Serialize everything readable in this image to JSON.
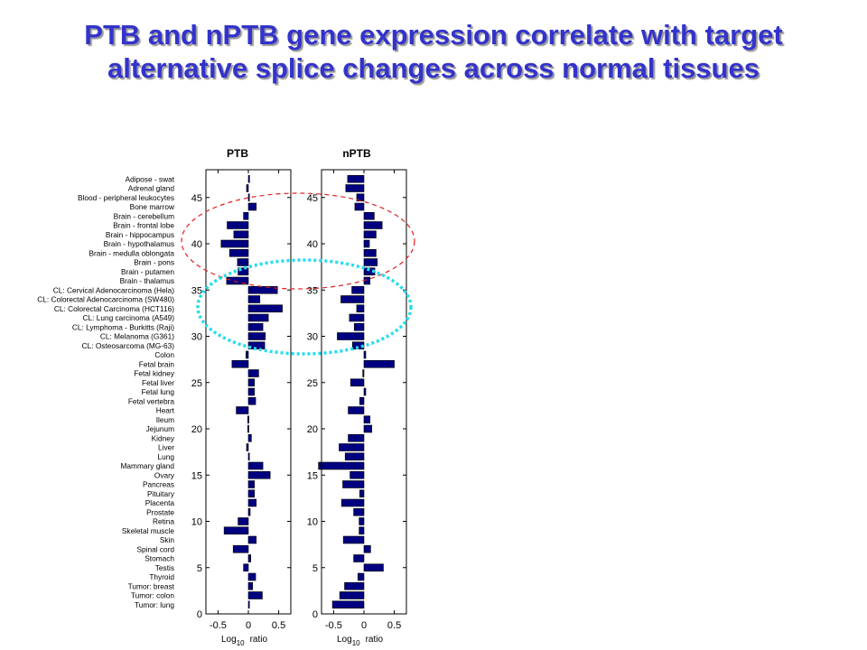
{
  "title_lines": [
    "PTB and nPTB gene expression correlate with target",
    "alternative splice changes across normal tissues"
  ],
  "colors": {
    "title": "#3333cc",
    "bar_fill": "#000080",
    "red_ellipse": "#dd2222",
    "cyan_ellipse": "#22ddee"
  },
  "chart_data": [
    {
      "type": "bar",
      "orientation": "horizontal",
      "title": "PTB",
      "xlabel": "Log10 ratio",
      "xlabel_main": "Log",
      "xlabel_sub": "10",
      "xlabel_rest": "ratio",
      "xlim": [
        -0.7,
        0.7
      ],
      "ylim": [
        0,
        48
      ],
      "xticks": [
        -0.5,
        0,
        0.5
      ],
      "xtick_labels": [
        "-0.5",
        "0",
        "0.5"
      ],
      "yticks": [
        0,
        5,
        10,
        15,
        20,
        25,
        30,
        35,
        40,
        45
      ],
      "ytick_labels": [
        "0",
        "5",
        "10",
        "15",
        "20",
        "25",
        "30",
        "35",
        "40",
        "45"
      ],
      "categories": [
        "Adipose - swat",
        "Adrenal gland",
        "Blood - peripheral leukocytes",
        "Bone marrow",
        "Brain - cerebellum",
        "Brain - frontal lobe",
        "Brain - hippocampus",
        "Brain - hypothalamus",
        "Brain - medulla oblongata",
        "Brain - pons",
        "Brain - putamen",
        "Brain - thalamus",
        "CL: Cervical Adenocarcinoma (Hela)",
        "CL: Colorectal Adenocarcinoma (SW480)",
        "CL: Colorectal Carcinoma (HCT116)",
        "CL: Lung carcinoma (A549)",
        "CL: Lymphoma - Burkitts (Raji)",
        "CL: Melanoma (G361)",
        "CL: Osteosarcoma (MG-63)",
        "Colon",
        "Fetal brain",
        "Fetal kidney",
        "Fetal liver",
        "Fetal lung",
        "Fetal vertebra",
        "Heart",
        "Ileum",
        "Jejunum",
        "Kidney",
        "Liver",
        "Lung",
        "Mammary gland",
        "Ovary",
        "Pancreas",
        "Pituitary",
        "Placenta",
        "Prostate",
        "Retina",
        "Skeletal muscle",
        "Skin",
        "Spinal cord",
        "Stomach",
        "Testis",
        "Thyroid",
        "Tumor: breast",
        "Tumor: colon",
        "Tumor: lung"
      ],
      "y_positions": [
        47,
        46,
        45,
        44,
        43,
        42,
        41,
        40,
        39,
        38,
        37,
        36,
        35,
        34,
        33,
        32,
        31,
        30,
        29,
        28,
        27,
        26,
        25,
        24,
        23,
        22,
        21,
        20,
        19,
        18,
        17,
        16,
        15,
        14,
        13,
        12,
        11,
        10,
        9,
        8,
        7,
        6,
        5,
        4,
        3,
        2,
        1
      ],
      "values": [
        0.02,
        -0.03,
        0.0,
        0.13,
        -0.08,
        -0.35,
        -0.24,
        -0.45,
        -0.31,
        -0.18,
        -0.17,
        -0.36,
        0.48,
        0.19,
        0.56,
        0.33,
        0.24,
        0.28,
        0.27,
        -0.04,
        -0.27,
        0.17,
        0.1,
        0.1,
        0.12,
        -0.2,
        -0.01,
        -0.01,
        0.05,
        -0.03,
        0.0,
        0.24,
        0.36,
        0.1,
        0.1,
        0.13,
        0.03,
        -0.17,
        -0.4,
        0.13,
        -0.25,
        0.04,
        -0.08,
        0.12,
        0.07,
        0.23,
        0.0
      ]
    },
    {
      "type": "bar",
      "orientation": "horizontal",
      "title": "nPTB",
      "xlabel": "Log10 ratio",
      "xlabel_main": "Log",
      "xlabel_sub": "10",
      "xlabel_rest": "ratio",
      "xlim": [
        -0.7,
        0.7
      ],
      "ylim": [
        0,
        48
      ],
      "xticks": [
        -0.5,
        0,
        0.5
      ],
      "xtick_labels": [
        "-0.5",
        "0",
        "0.5"
      ],
      "yticks": [
        0,
        5,
        10,
        15,
        20,
        25,
        30,
        35,
        40,
        45
      ],
      "ytick_labels": [
        "0",
        "5",
        "10",
        "15",
        "20",
        "25",
        "30",
        "35",
        "40",
        "45"
      ],
      "y_positions": [
        47,
        46,
        45,
        44,
        43,
        42,
        41,
        40,
        39,
        38,
        37,
        36,
        35,
        34,
        33,
        32,
        31,
        30,
        29,
        28,
        27,
        26,
        25,
        24,
        23,
        22,
        21,
        20,
        19,
        18,
        17,
        16,
        15,
        14,
        13,
        12,
        11,
        10,
        9,
        8,
        7,
        6,
        5,
        4,
        3,
        2,
        1
      ],
      "values": [
        -0.27,
        -0.3,
        -0.12,
        -0.15,
        0.17,
        0.3,
        0.2,
        0.09,
        0.2,
        0.22,
        0.18,
        0.1,
        -0.2,
        -0.38,
        -0.12,
        -0.24,
        -0.16,
        -0.44,
        -0.19,
        0.03,
        0.5,
        -0.02,
        -0.22,
        0.03,
        -0.07,
        -0.26,
        0.1,
        0.13,
        -0.26,
        -0.41,
        -0.31,
        -0.75,
        -0.23,
        -0.35,
        -0.07,
        -0.37,
        -0.17,
        -0.08,
        -0.08,
        -0.34,
        0.11,
        -0.17,
        0.32,
        -0.1,
        -0.32,
        -0.4,
        -0.52
      ]
    }
  ]
}
